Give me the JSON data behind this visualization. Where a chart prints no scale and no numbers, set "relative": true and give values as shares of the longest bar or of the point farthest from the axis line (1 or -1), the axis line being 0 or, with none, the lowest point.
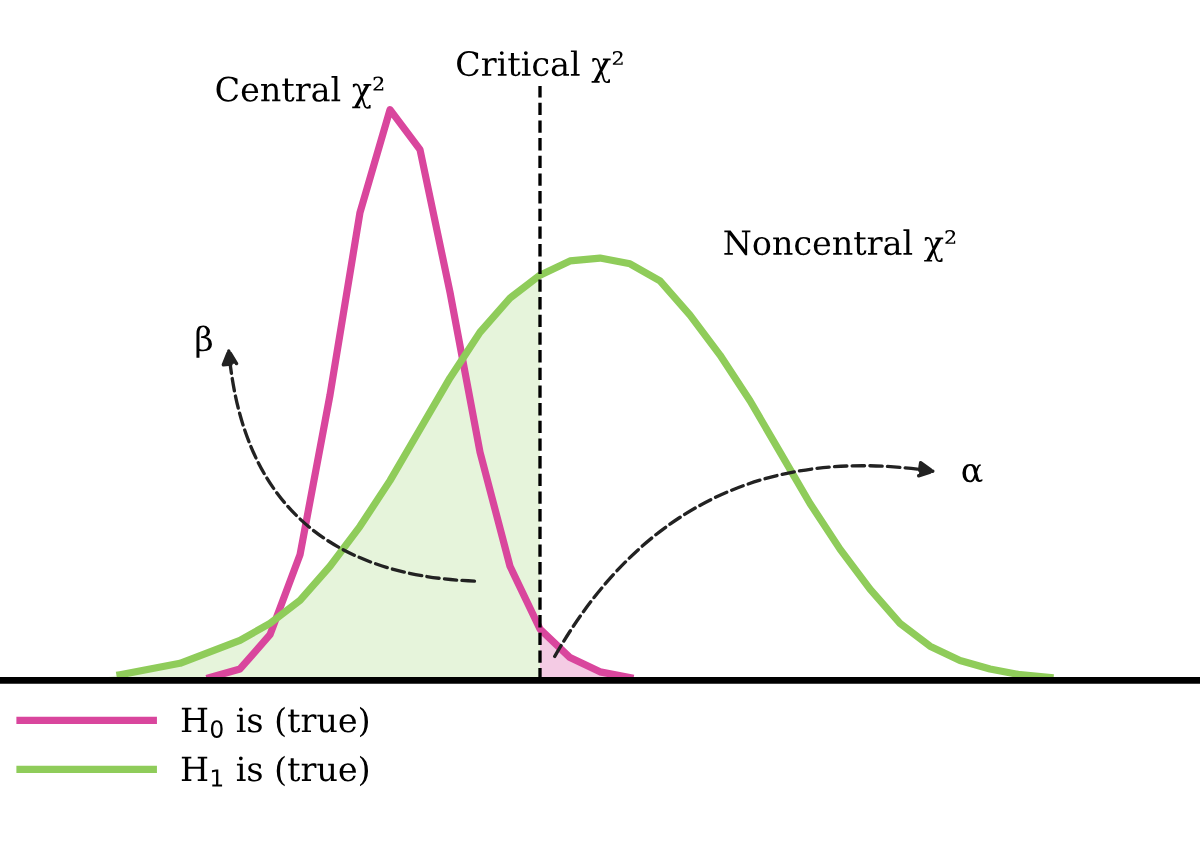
{
  "chart_data": {
    "type": "line",
    "relative": true,
    "tick_labels": false,
    "grid": false,
    "legend": "bottom left",
    "marker": "none",
    "line_style": "solid",
    "categories": [
      null,
      null,
      null,
      null,
      null,
      null,
      null,
      null,
      null,
      null,
      null,
      null,
      null,
      null,
      null,
      null,
      null,
      null,
      null,
      null,
      null,
      null,
      null,
      null,
      null,
      null,
      null,
      null,
      null,
      null,
      null,
      null,
      null,
      null,
      null,
      null,
      null,
      null,
      null,
      null,
      null
    ],
    "series": [
      {
        "name": "H$_{0}$ is (true)",
        "color": "#d9469d",
        "values": [
          null,
          null,
          null,
          null,
          null,
          null,
          null,
          0.005,
          0.02,
          0.08,
          0.22,
          0.5,
          0.82,
          1.0,
          0.93,
          0.68,
          0.4,
          0.2,
          0.09,
          0.04,
          0.015,
          0.005,
          null,
          null,
          null,
          null,
          null,
          null,
          null,
          null,
          null,
          null,
          null,
          null,
          null,
          null,
          null,
          null,
          null,
          null,
          null
        ]
      },
      {
        "name": "H$_{1}$ is (true)",
        "color": "#8fcc5a",
        "values": [
          null,
          null,
          null,
          null,
          0.01,
          0.02,
          0.03,
          0.05,
          0.07,
          0.1,
          0.14,
          0.2,
          0.27,
          0.35,
          0.44,
          0.53,
          0.61,
          0.67,
          0.71,
          0.735,
          0.74,
          0.73,
          0.7,
          0.64,
          0.57,
          0.49,
          0.4,
          0.31,
          0.23,
          0.16,
          0.1,
          0.06,
          0.035,
          0.02,
          0.01,
          0.005,
          null,
          null,
          null,
          null,
          null
        ]
      }
    ],
    "annotations": [
      "Central χ²",
      "Critical χ²",
      "Noncentral χ²",
      "β",
      "α"
    ]
  }
}
